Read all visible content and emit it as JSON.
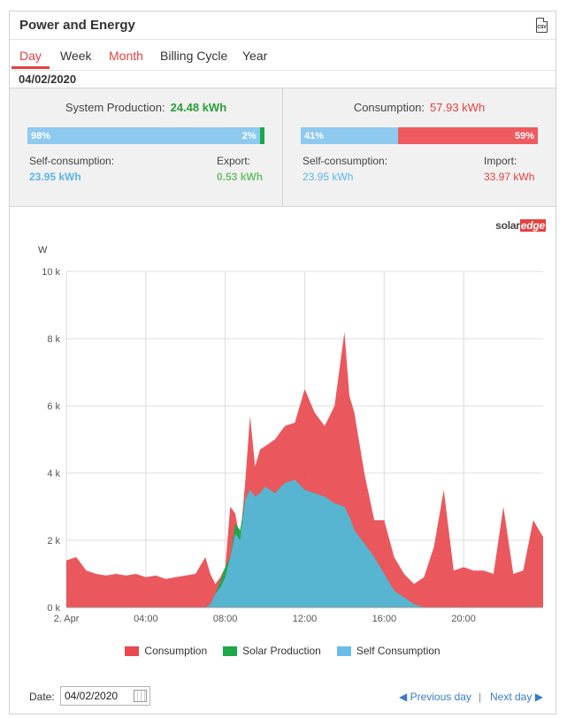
{
  "header": {
    "title": "Power and Energy",
    "csv_label": "CSV"
  },
  "tabs": [
    {
      "label": "Day"
    },
    {
      "label": "Week"
    },
    {
      "label": "Month"
    },
    {
      "label": "Billing Cycle"
    },
    {
      "label": "Year"
    }
  ],
  "current_date": "04/02/2020",
  "production": {
    "title": "System Production:",
    "value": "24.48 kWh",
    "bar_self_pct": "98%",
    "bar_export_pct": "2%",
    "self_label": "Self-consumption:",
    "self_value": "23.95 kWh",
    "export_label": "Export:",
    "export_value": "0.53 kWh"
  },
  "consumption": {
    "title": "Consumption:",
    "value": "57.93 kWh",
    "bar_self_pct": "41%",
    "bar_import_pct": "59%",
    "self_label": "Self-consumption:",
    "self_value": "23.95 kWh",
    "import_label": "Import:",
    "import_value": "33.97 kWh"
  },
  "brand": {
    "solar": "solar",
    "edge": "edge"
  },
  "colors": {
    "consumption": "#e84a4f",
    "solar_production": "#1aa84a",
    "self_consumption": "#5ab6d8",
    "accent_red": "#e5403f",
    "green_text": "#2a9d3a",
    "blue_text": "#5bb5e8"
  },
  "chart_data": {
    "type": "area",
    "ylabel": "W",
    "ylim": [
      0,
      10000
    ],
    "yticks": [
      "0 k",
      "2 k",
      "4 k",
      "6 k",
      "8 k",
      "10 k"
    ],
    "xticks": [
      "2. Apr",
      "04:00",
      "08:00",
      "12:00",
      "16:00",
      "20:00"
    ],
    "x_hours": [
      0,
      0.5,
      1,
      1.5,
      2,
      2.5,
      3,
      3.5,
      4,
      4.5,
      5,
      5.5,
      6,
      6.5,
      7,
      7.25,
      7.5,
      7.75,
      8,
      8.25,
      8.5,
      8.75,
      9,
      9.25,
      9.5,
      9.75,
      10,
      10.5,
      11,
      11.5,
      12,
      12.5,
      13,
      13.5,
      14,
      14.25,
      14.5,
      15,
      15.5,
      16,
      16.5,
      17,
      17.5,
      18,
      18.5,
      19,
      19.5,
      20,
      20.5,
      21,
      21.5,
      22,
      22.5,
      23,
      23.5,
      24
    ],
    "series": [
      {
        "name": "Consumption",
        "values": [
          1400,
          1500,
          1100,
          1000,
          950,
          1000,
          950,
          1000,
          900,
          950,
          850,
          900,
          950,
          1000,
          1500,
          1000,
          700,
          900,
          1200,
          3000,
          2800,
          2000,
          3700,
          5700,
          4200,
          4700,
          4800,
          5000,
          5400,
          5500,
          6500,
          5800,
          5400,
          6000,
          8200,
          6300,
          5800,
          4000,
          2600,
          2600,
          1500,
          1000,
          700,
          900,
          1800,
          3500,
          1100,
          1200,
          1100,
          1100,
          1000,
          3000,
          1000,
          1100,
          2600,
          2100
        ]
      },
      {
        "name": "Solar Production",
        "values": [
          0,
          0,
          0,
          0,
          0,
          0,
          0,
          0,
          0,
          0,
          0,
          0,
          0,
          0,
          0,
          100,
          400,
          800,
          1200,
          1500,
          2500,
          2300,
          3200,
          3500,
          3300,
          3400,
          3600,
          3400,
          3700,
          3800,
          3500,
          3400,
          3300,
          3100,
          3000,
          2700,
          2300,
          1900,
          1500,
          1000,
          500,
          300,
          100,
          0,
          0,
          0,
          0,
          0,
          0,
          0,
          0,
          0,
          0,
          0,
          0,
          0
        ]
      },
      {
        "name": "Self Consumption",
        "values": [
          0,
          0,
          0,
          0,
          0,
          0,
          0,
          0,
          0,
          0,
          0,
          0,
          0,
          0,
          0,
          100,
          400,
          600,
          900,
          1500,
          2200,
          2000,
          3200,
          3500,
          3300,
          3400,
          3600,
          3400,
          3700,
          3800,
          3500,
          3400,
          3300,
          3100,
          3000,
          2700,
          2300,
          1900,
          1500,
          1000,
          500,
          300,
          100,
          0,
          0,
          0,
          0,
          0,
          0,
          0,
          0,
          0,
          0,
          0,
          0,
          0
        ]
      }
    ],
    "grid": true,
    "legend_position": "bottom"
  },
  "footer": {
    "date_label": "Date:",
    "date_value": "04/02/2020",
    "prev_label": "Previous day",
    "separator": "|",
    "next_label": "Next day"
  }
}
